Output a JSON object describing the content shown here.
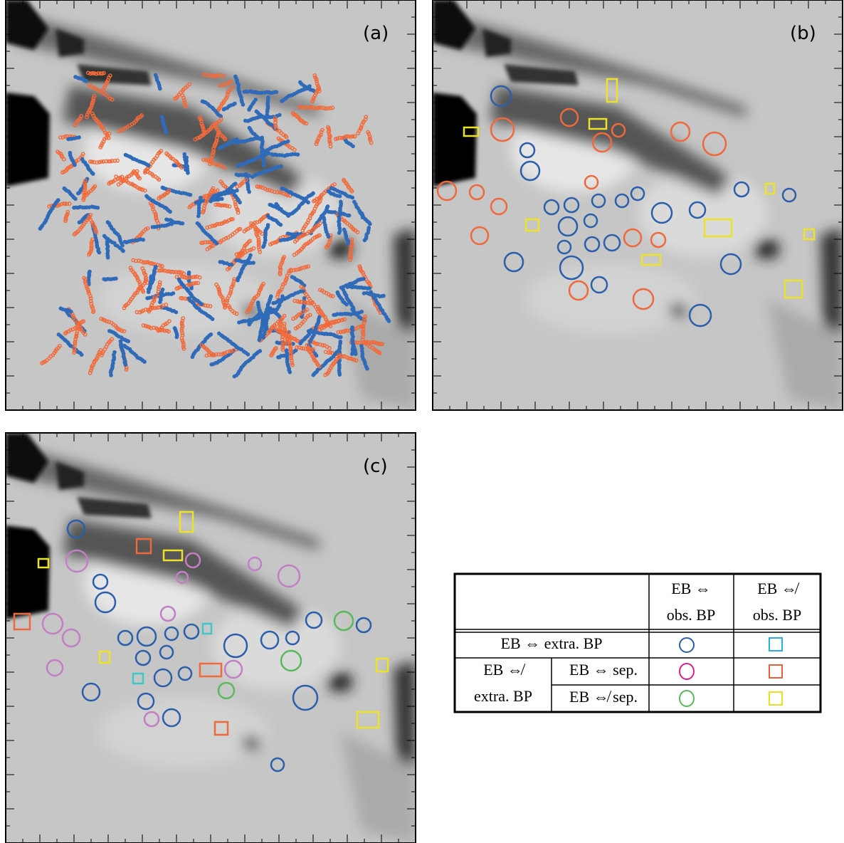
{
  "panels": [
    {
      "label": "(a)"
    },
    {
      "label": "(b)"
    },
    {
      "label": "(c)"
    }
  ],
  "legend": {
    "header": [
      [
        "EB ⇔",
        "obs. BP"
      ],
      [
        "EB ⇎",
        "obs. BP"
      ]
    ],
    "row1": "EB ⇔ extra. BP",
    "group": [
      "EB ⇎",
      "extra. BP"
    ],
    "row2": "EB ⇔ sep.",
    "row3": "EB ⇎ sep."
  }
}
